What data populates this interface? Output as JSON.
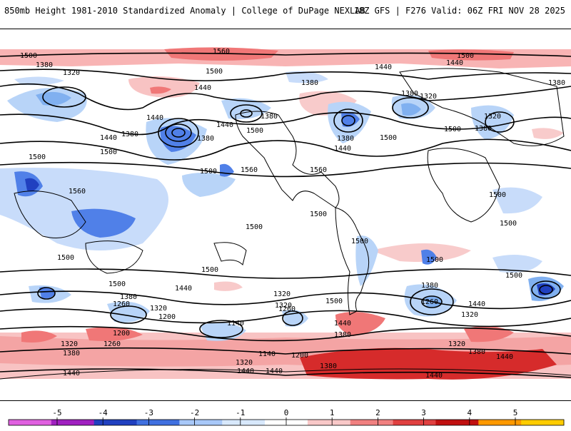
{
  "header": {
    "title": "850mb Height 1981-2010 Standardized Anomaly | College of DuPage NEXLAB",
    "run_info": "18Z GFS | F276 Valid: 06Z FRI NOV 28 2025"
  },
  "colorbar": {
    "ticks": [
      "-5",
      "-4",
      "-3",
      "-2",
      "-1",
      "0",
      "1",
      "2",
      "3",
      "4",
      "5"
    ],
    "colors": [
      "#e060e0",
      "#a020c0",
      "#2040c0",
      "#4070e0",
      "#a8c8f8",
      "#d8e8fc",
      "#ffffff",
      "#f8c8c8",
      "#f08080",
      "#e04040",
      "#c01010",
      "#ff9900",
      "#ffcc00"
    ]
  },
  "contour_labels": [
    "1560",
    "1500",
    "1500",
    "1440",
    "1440",
    "1500",
    "1380",
    "1320",
    "1380",
    "1320",
    "1380",
    "1440",
    "1380",
    "1380",
    "1440",
    "1500",
    "1440",
    "1500",
    "1440",
    "1380",
    "1320",
    "1380",
    "1500",
    "1380",
    "1500",
    "1380",
    "1440",
    "1500",
    "1500",
    "1560",
    "1560",
    "1560",
    "1500",
    "1500",
    "1500",
    "1500",
    "1500",
    "1500",
    "1500",
    "1500",
    "1500",
    "1500",
    "1500",
    "1380",
    "1440",
    "1260",
    "1320",
    "1200",
    "1260",
    "1200",
    "1140",
    "1140",
    "1200",
    "1260",
    "1320",
    "1380",
    "1440",
    "1320",
    "1320",
    "1380",
    "1440",
    "1380",
    "1440",
    "1320",
    "1380",
    "1440",
    "1440",
    "1380",
    "1440",
    "1320",
    "1260",
    "1320",
    "1440"
  ]
}
